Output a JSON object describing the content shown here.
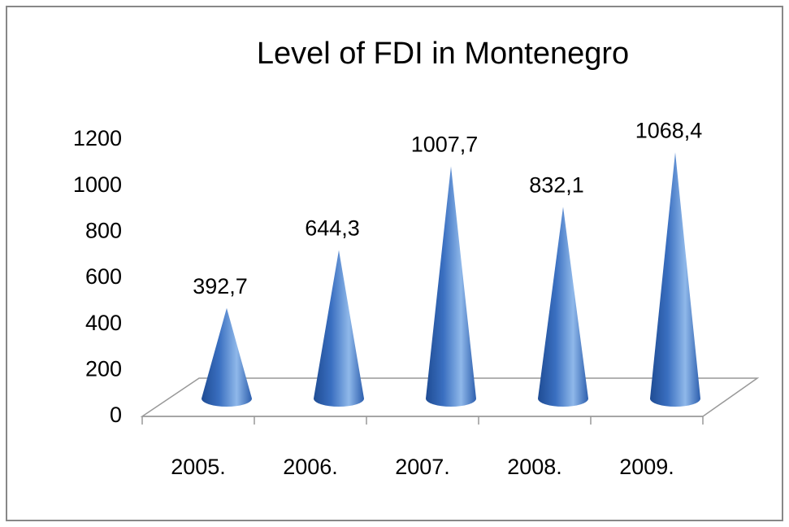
{
  "chart_data": {
    "type": "cone",
    "title": "Level of FDI in Montenegro",
    "categories": [
      "2005.",
      "2006.",
      "2007.",
      "2008.",
      "2009."
    ],
    "values": [
      392.7,
      644.3,
      1007.7,
      832.1,
      1068.4
    ],
    "value_labels": [
      "392,7",
      "644,3",
      "1007,7",
      "832,1",
      "1068,4"
    ],
    "color": "#3a6fc0",
    "ylim": [
      0,
      1200
    ],
    "yticks": [
      0,
      200,
      400,
      600,
      800,
      1000,
      1200
    ],
    "grid": false
  }
}
